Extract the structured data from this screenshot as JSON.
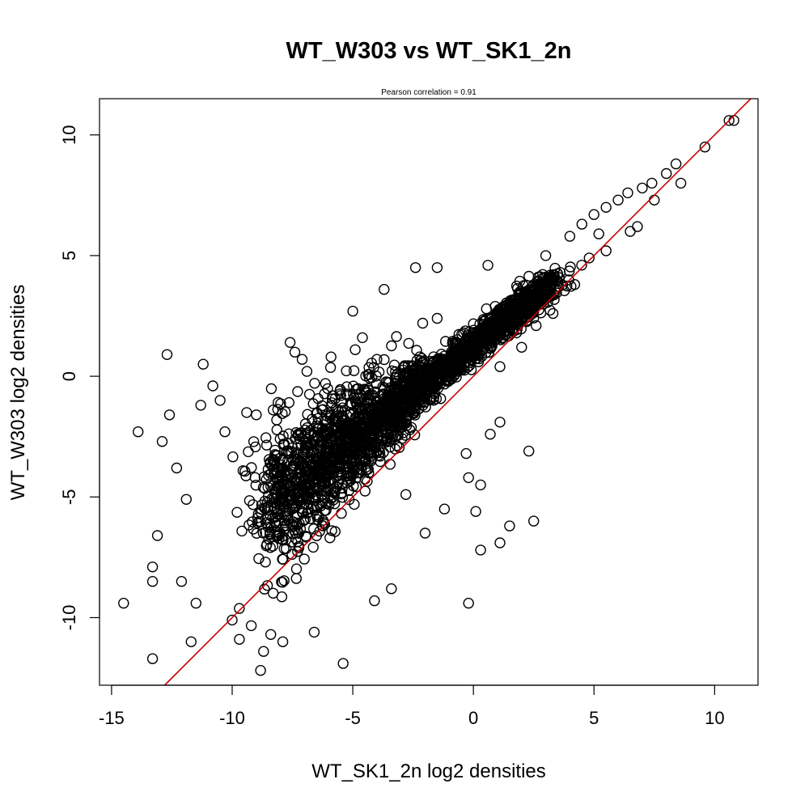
{
  "chart_data": {
    "type": "scatter",
    "title": "WT_W303 vs WT_SK1_2n",
    "subtitle": "Pearson correlation =  0.91",
    "xlabel": "WT_SK1_2n log2 densities",
    "ylabel": "WT_W303 log2 densities",
    "xlim": [
      -15.5,
      11.8
    ],
    "ylim": [
      -12.8,
      11.5
    ],
    "x_ticks": [
      -15,
      -10,
      -5,
      0,
      5,
      10
    ],
    "y_ticks": [
      -10,
      -5,
      0,
      5,
      10
    ],
    "x_tick_labels": [
      "-15",
      "-10",
      "-5",
      "0",
      "5",
      "10"
    ],
    "y_tick_labels": [
      "-10",
      "-5",
      "0",
      "5",
      "10"
    ],
    "marker": "open-circle",
    "point_color": "#000000",
    "line_color": "#cc0000",
    "reference_line": {
      "type": "identity",
      "slope": 1,
      "intercept": 0
    },
    "grid": false,
    "points": [
      [
        -14.5,
        -9.4
      ],
      [
        -13.9,
        -2.3
      ],
      [
        -13.3,
        -11.7
      ],
      [
        -13.3,
        -7.9
      ],
      [
        -13.3,
        -8.5
      ],
      [
        -13.1,
        -6.6
      ],
      [
        -12.9,
        -2.7
      ],
      [
        -12.7,
        0.9
      ],
      [
        -12.6,
        -1.6
      ],
      [
        -12.3,
        -3.8
      ],
      [
        -12.1,
        -8.5
      ],
      [
        -11.9,
        -5.1
      ],
      [
        -11.7,
        -11.0
      ],
      [
        -11.5,
        -9.4
      ],
      [
        -11.3,
        -1.2
      ],
      [
        -11.2,
        0.5
      ],
      [
        -10.8,
        -0.4
      ],
      [
        -10.5,
        -1.0
      ],
      [
        -10.3,
        -2.3
      ],
      [
        -10.0,
        -10.1
      ],
      [
        -9.7,
        -10.9
      ],
      [
        -9.4,
        -1.5
      ],
      [
        -9.0,
        -1.6
      ],
      [
        -8.7,
        -11.4
      ],
      [
        -8.4,
        -10.7
      ],
      [
        -7.9,
        -11.0
      ],
      [
        -7.6,
        1.4
      ],
      [
        -7.4,
        1.0
      ],
      [
        -7.1,
        0.7
      ],
      [
        -6.9,
        0.2
      ],
      [
        -6.6,
        -10.6
      ],
      [
        -5.9,
        0.8
      ],
      [
        -5.4,
        -11.9
      ],
      [
        -5.0,
        2.7
      ],
      [
        -4.9,
        1.1
      ],
      [
        -4.6,
        1.6
      ],
      [
        -4.0,
        0.7
      ],
      [
        -3.7,
        3.6
      ],
      [
        -2.4,
        4.5
      ],
      [
        -2.1,
        2.2
      ],
      [
        -1.5,
        4.5
      ],
      [
        -1.5,
        2.4
      ],
      [
        0.6,
        4.6
      ],
      [
        -0.3,
        -3.2
      ],
      [
        -0.2,
        -4.2
      ],
      [
        0.1,
        -5.6
      ],
      [
        0.3,
        -7.2
      ],
      [
        0.3,
        -4.5
      ],
      [
        -0.2,
        -9.4
      ],
      [
        1.1,
        -6.9
      ],
      [
        1.5,
        -6.2
      ],
      [
        2.3,
        -3.1
      ],
      [
        2.5,
        -6.0
      ],
      [
        1.1,
        -1.9
      ],
      [
        0.7,
        -2.4
      ],
      [
        -1.2,
        -5.5
      ],
      [
        -2.0,
        -6.5
      ],
      [
        -3.4,
        -8.8
      ],
      [
        -4.1,
        -9.3
      ],
      [
        -2.8,
        -4.9
      ],
      [
        3.0,
        5.0
      ],
      [
        4.0,
        5.8
      ],
      [
        4.5,
        6.3
      ],
      [
        5.0,
        6.7
      ],
      [
        5.5,
        7.0
      ],
      [
        6.0,
        7.3
      ],
      [
        6.4,
        7.6
      ],
      [
        7.0,
        7.8
      ],
      [
        7.4,
        8.0
      ],
      [
        8.0,
        8.4
      ],
      [
        8.4,
        8.8
      ],
      [
        8.6,
        8.0
      ],
      [
        9.6,
        9.5
      ],
      [
        10.6,
        10.6
      ],
      [
        10.8,
        10.6
      ],
      [
        6.5,
        6.0
      ],
      [
        5.5,
        5.2
      ],
      [
        4.2,
        3.8
      ],
      [
        3.3,
        2.6
      ],
      [
        2.0,
        1.2
      ],
      [
        1.1,
        0.4
      ],
      [
        7.5,
        7.3
      ],
      [
        6.8,
        6.2
      ],
      [
        5.2,
        5.9
      ],
      [
        4.8,
        4.9
      ],
      [
        3.6,
        4.3
      ],
      [
        2.6,
        2.1
      ],
      [
        1.5,
        2.6
      ],
      [
        0.4,
        1.1
      ],
      [
        -0.4,
        1.8
      ]
    ]
  }
}
